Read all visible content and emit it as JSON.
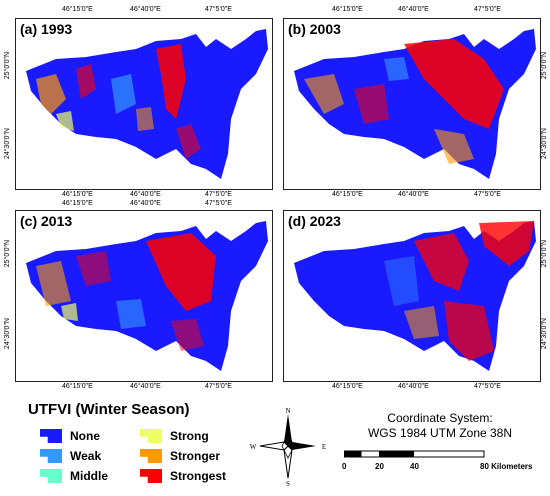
{
  "panels": [
    {
      "id": "a",
      "title": "(a) 1993",
      "top_coords": [
        "46°15'0\"E",
        "46°40'0\"E",
        "47°5'0\"E"
      ],
      "left_coords": [
        "25°0'0\"N",
        "24°30'0\"N"
      ],
      "right_coords": [],
      "bottom_coords": [
        "46°15'0\"E",
        "46°40'0\"E",
        "47°5'0\"E"
      ]
    },
    {
      "id": "b",
      "title": "(b) 2003",
      "top_coords": [
        "46°15'0\"E",
        "46°40'0\"E",
        "47°5'0\"E"
      ],
      "left_coords": [],
      "right_coords": [
        "25°0'0\"N",
        "24°30'0\"N"
      ],
      "bottom_coords": [
        "46°15'0\"E",
        "46°40'0\"E",
        "47°5'0\"E"
      ]
    },
    {
      "id": "c",
      "title": "(c) 2013",
      "top_coords": [
        "46°15'0\"E",
        "46°40'0\"E",
        "47°5'0\"E"
      ],
      "left_coords": [
        "25°0'0\"N",
        "24°30'0\"N"
      ],
      "right_coords": [],
      "bottom_coords": [
        "46°15'0\"E",
        "46°40'0\"E",
        "47°5'0\"E"
      ]
    },
    {
      "id": "d",
      "title": "(d) 2023",
      "top_coords": [],
      "left_coords": [],
      "right_coords": [
        "25°0'0\"N",
        "24°30'0\"N"
      ],
      "bottom_coords": [
        "46°15'0\"E",
        "46°40'0\"E",
        "47°5'0\"E"
      ]
    }
  ],
  "legend": {
    "title": "UTFVI (Winter Season)",
    "items": [
      {
        "label": "None",
        "color": "#1a1aff"
      },
      {
        "label": "Weak",
        "color": "#3399ff"
      },
      {
        "label": "Middle",
        "color": "#66ffcc"
      },
      {
        "label": "Strong",
        "color": "#eeff66"
      },
      {
        "label": "Stronger",
        "color": "#ff9900"
      },
      {
        "label": "Strongest",
        "color": "#ff0000"
      }
    ]
  },
  "north_arrow": {
    "n": "N",
    "s": "S",
    "e": "E",
    "w": "W"
  },
  "coordinate_system": {
    "line1": "Coordinate System:",
    "line2": "WGS 1984 UTM Zone 38N"
  },
  "scale_bar": {
    "labels": [
      "0",
      "20",
      "40",
      "80 Kilometers"
    ]
  }
}
